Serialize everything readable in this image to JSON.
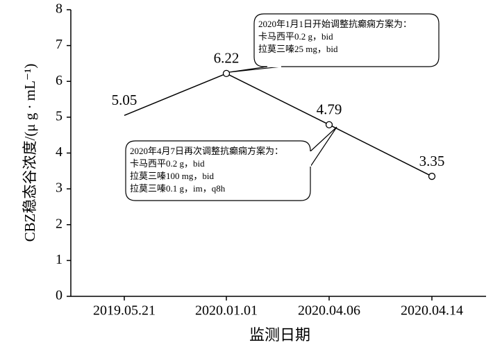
{
  "chart_data": {
    "type": "line",
    "xlabel": "监测日期",
    "ylabel": "CBZ稳态谷浓度/(μ g · mL⁻¹)",
    "categories": [
      "2019.05.21",
      "2020.01.01",
      "2020.04.06",
      "2020.04.14"
    ],
    "values": [
      5.05,
      6.22,
      4.79,
      3.35
    ],
    "markers": [
      false,
      true,
      true,
      true
    ],
    "color": "#000000",
    "ylim": [
      0,
      8
    ],
    "yticks": [
      0,
      1,
      2,
      3,
      4,
      5,
      6,
      7,
      8
    ],
    "annotations": [
      {
        "lines": [
          "2020年1月1日开始调整抗癫痫方案为：",
          "卡马西平0.2 g，bid",
          "拉莫三嗪25 mg，bid"
        ]
      },
      {
        "lines": [
          "2020年4月7日再次调整抗癫痫方案为：",
          "卡马西平0.2 g，bid",
          "拉莫三嗪100 mg，bid",
          "拉莫三嗪0.1 g，im，q8h"
        ]
      }
    ]
  }
}
